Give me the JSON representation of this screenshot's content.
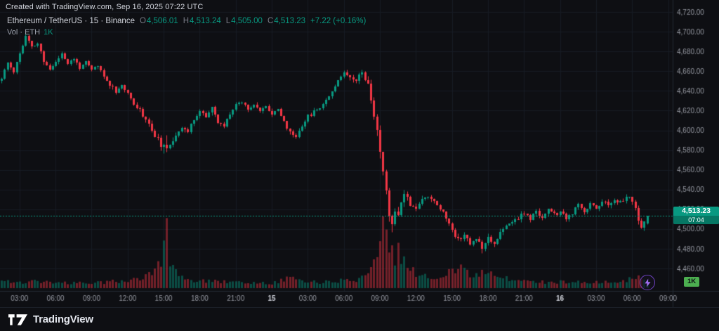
{
  "header": {
    "created_line": "Created with TradingView.com, Sep 16, 2025 07:22 UTC",
    "symbol": {
      "title": "Ethereum / TetherUS · 15 · Binance",
      "o_label": "O",
      "o": "4,506.01",
      "h_label": "H",
      "h": "4,513.24",
      "l_label": "L",
      "l": "4,505.00",
      "c_label": "C",
      "c": "4,513.23",
      "change": "+7.22 (+0.16%)"
    },
    "volume_row": {
      "label": "Vol · ETH",
      "value": "1K"
    }
  },
  "last_price": {
    "value": "4,513.23",
    "countdown": "07:04"
  },
  "volume_badge": "1K",
  "footer": {
    "brand": "TradingView"
  },
  "colors": {
    "background": "#0e0f13",
    "up": "#089981",
    "down": "#f23645",
    "vol_up": "rgba(8,153,129,0.45)",
    "vol_down": "rgba(242,54,69,0.45)",
    "grid": "#171b23",
    "axis_text": "#9598a1",
    "axis_text_major": "#d1d4dc",
    "border": "#242a33",
    "price_line": "#089981"
  },
  "chart_data": {
    "type": "candlestick",
    "title": "Ethereum / TetherUS",
    "exchange": "Binance",
    "interval": "15",
    "volume_overlay": "Vol · ETH",
    "n_candles": 216,
    "x_slots": 224,
    "ylim": [
      4438,
      4725
    ],
    "scale": {
      "price_top": 4725,
      "price_bottom": 4438
    },
    "last_candle": {
      "open": 4506.01,
      "high": 4513.24,
      "low": 4505.0,
      "close": 4513.23
    },
    "last_price": 4513.23,
    "seed": 11,
    "noise": 1.8,
    "wick": 2.2,
    "price_labels": [
      {
        "p": 4720,
        "t": "4,720.00"
      },
      {
        "p": 4700,
        "t": "4,700.00"
      },
      {
        "p": 4680,
        "t": "4,680.00"
      },
      {
        "p": 4660,
        "t": "4,660.00"
      },
      {
        "p": 4640,
        "t": "4,640.00"
      },
      {
        "p": 4620,
        "t": "4,620.00"
      },
      {
        "p": 4600,
        "t": "4,600.00"
      },
      {
        "p": 4580,
        "t": "4,580.00"
      },
      {
        "p": 4560,
        "t": "4,560.00"
      },
      {
        "p": 4540,
        "t": "4,540.00"
      },
      {
        "p": 4520,
        "t": "4,520.00"
      },
      {
        "p": 4500,
        "t": "4,500.00"
      },
      {
        "p": 4480,
        "t": "4,480.00"
      },
      {
        "p": 4460,
        "t": "4,460.00"
      }
    ],
    "time_labels": [
      {
        "i": 6,
        "t": "03:00"
      },
      {
        "i": 18,
        "t": "06:00"
      },
      {
        "i": 30,
        "t": "09:00"
      },
      {
        "i": 42,
        "t": "12:00"
      },
      {
        "i": 54,
        "t": "15:00"
      },
      {
        "i": 66,
        "t": "18:00"
      },
      {
        "i": 78,
        "t": "21:00"
      },
      {
        "i": 90,
        "t": "15",
        "major": true
      },
      {
        "i": 102,
        "t": "03:00"
      },
      {
        "i": 114,
        "t": "06:00"
      },
      {
        "i": 126,
        "t": "09:00"
      },
      {
        "i": 138,
        "t": "12:00"
      },
      {
        "i": 150,
        "t": "15:00"
      },
      {
        "i": 162,
        "t": "18:00"
      },
      {
        "i": 174,
        "t": "21:00"
      },
      {
        "i": 186,
        "t": "16",
        "major": true
      },
      {
        "i": 198,
        "t": "03:00"
      },
      {
        "i": 210,
        "t": "06:00"
      },
      {
        "i": 222,
        "t": "09:00"
      }
    ],
    "close_anchors": [
      [
        0,
        4652
      ],
      [
        2,
        4668
      ],
      [
        4,
        4660
      ],
      [
        6,
        4678
      ],
      [
        8,
        4695
      ],
      [
        10,
        4684
      ],
      [
        12,
        4688
      ],
      [
        14,
        4670
      ],
      [
        16,
        4662
      ],
      [
        18,
        4669
      ],
      [
        20,
        4678
      ],
      [
        22,
        4668
      ],
      [
        24,
        4672
      ],
      [
        26,
        4664
      ],
      [
        28,
        4668
      ],
      [
        30,
        4661
      ],
      [
        32,
        4666
      ],
      [
        34,
        4654
      ],
      [
        36,
        4647
      ],
      [
        38,
        4640
      ],
      [
        40,
        4646
      ],
      [
        42,
        4636
      ],
      [
        44,
        4628
      ],
      [
        46,
        4620
      ],
      [
        48,
        4612
      ],
      [
        50,
        4600
      ],
      [
        52,
        4590
      ],
      [
        54,
        4582
      ],
      [
        55,
        4578
      ],
      [
        56,
        4586
      ],
      [
        58,
        4596
      ],
      [
        60,
        4604
      ],
      [
        62,
        4598
      ],
      [
        64,
        4612
      ],
      [
        66,
        4620
      ],
      [
        68,
        4614
      ],
      [
        70,
        4622
      ],
      [
        72,
        4608
      ],
      [
        74,
        4604
      ],
      [
        76,
        4618
      ],
      [
        78,
        4626
      ],
      [
        80,
        4630
      ],
      [
        82,
        4622
      ],
      [
        84,
        4628
      ],
      [
        86,
        4619
      ],
      [
        88,
        4624
      ],
      [
        90,
        4618
      ],
      [
        92,
        4622
      ],
      [
        94,
        4608
      ],
      [
        96,
        4598
      ],
      [
        98,
        4594
      ],
      [
        100,
        4606
      ],
      [
        102,
        4614
      ],
      [
        104,
        4619
      ],
      [
        106,
        4624
      ],
      [
        108,
        4631
      ],
      [
        110,
        4640
      ],
      [
        112,
        4652
      ],
      [
        114,
        4658
      ],
      [
        116,
        4655
      ],
      [
        118,
        4652
      ],
      [
        120,
        4660
      ],
      [
        122,
        4646
      ],
      [
        124,
        4616
      ],
      [
        126,
        4580
      ],
      [
        127,
        4560
      ],
      [
        128,
        4536
      ],
      [
        129,
        4514
      ],
      [
        130,
        4506
      ],
      [
        131,
        4521
      ],
      [
        132,
        4512
      ],
      [
        133,
        4530
      ],
      [
        134,
        4538
      ],
      [
        136,
        4526
      ],
      [
        138,
        4521
      ],
      [
        140,
        4530
      ],
      [
        142,
        4534
      ],
      [
        144,
        4529
      ],
      [
        146,
        4521
      ],
      [
        148,
        4512
      ],
      [
        150,
        4498
      ],
      [
        152,
        4490
      ],
      [
        154,
        4495
      ],
      [
        156,
        4484
      ],
      [
        158,
        4491
      ],
      [
        160,
        4482
      ],
      [
        162,
        4492
      ],
      [
        164,
        4486
      ],
      [
        166,
        4496
      ],
      [
        168,
        4502
      ],
      [
        170,
        4508
      ],
      [
        172,
        4512
      ],
      [
        174,
        4516
      ],
      [
        176,
        4510
      ],
      [
        178,
        4518
      ],
      [
        180,
        4512
      ],
      [
        182,
        4520
      ],
      [
        184,
        4514
      ],
      [
        186,
        4518
      ],
      [
        188,
        4510
      ],
      [
        190,
        4516
      ],
      [
        192,
        4524
      ],
      [
        194,
        4518
      ],
      [
        196,
        4526
      ],
      [
        198,
        4521
      ],
      [
        200,
        4529
      ],
      [
        202,
        4523
      ],
      [
        204,
        4531
      ],
      [
        206,
        4527
      ],
      [
        208,
        4533
      ],
      [
        210,
        4529
      ],
      [
        211,
        4521
      ],
      [
        212,
        4508
      ],
      [
        213,
        4500
      ],
      [
        214,
        4507
      ],
      [
        215,
        4513.23
      ]
    ],
    "volume_anchors": [
      [
        0,
        0.1
      ],
      [
        6,
        0.08
      ],
      [
        12,
        0.1
      ],
      [
        18,
        0.08
      ],
      [
        24,
        0.07
      ],
      [
        30,
        0.07
      ],
      [
        36,
        0.09
      ],
      [
        42,
        0.1
      ],
      [
        46,
        0.14
      ],
      [
        50,
        0.22
      ],
      [
        53,
        0.35
      ],
      [
        55,
        1.0
      ],
      [
        56,
        0.4
      ],
      [
        58,
        0.22
      ],
      [
        60,
        0.14
      ],
      [
        66,
        0.1
      ],
      [
        72,
        0.09
      ],
      [
        78,
        0.08
      ],
      [
        84,
        0.07
      ],
      [
        90,
        0.07
      ],
      [
        94,
        0.12
      ],
      [
        96,
        0.16
      ],
      [
        100,
        0.1
      ],
      [
        106,
        0.08
      ],
      [
        112,
        0.1
      ],
      [
        118,
        0.12
      ],
      [
        121,
        0.18
      ],
      [
        123,
        0.3
      ],
      [
        125,
        0.55
      ],
      [
        127,
        0.92
      ],
      [
        128,
        0.85
      ],
      [
        129,
        0.65
      ],
      [
        130,
        0.75
      ],
      [
        131,
        0.45
      ],
      [
        132,
        0.55
      ],
      [
        134,
        0.38
      ],
      [
        136,
        0.28
      ],
      [
        138,
        0.2
      ],
      [
        142,
        0.14
      ],
      [
        146,
        0.12
      ],
      [
        149,
        0.25
      ],
      [
        151,
        0.18
      ],
      [
        153,
        0.3
      ],
      [
        155,
        0.22
      ],
      [
        157,
        0.16
      ],
      [
        159,
        0.2
      ],
      [
        161,
        0.26
      ],
      [
        163,
        0.18
      ],
      [
        166,
        0.14
      ],
      [
        170,
        0.12
      ],
      [
        174,
        0.1
      ],
      [
        178,
        0.09
      ],
      [
        182,
        0.08
      ],
      [
        186,
        0.09
      ],
      [
        190,
        0.08
      ],
      [
        194,
        0.09
      ],
      [
        198,
        0.08
      ],
      [
        202,
        0.09
      ],
      [
        206,
        0.1
      ],
      [
        209,
        0.12
      ],
      [
        211,
        0.14
      ],
      [
        212,
        0.18
      ],
      [
        213,
        0.15
      ],
      [
        214,
        0.11
      ],
      [
        215,
        0.09
      ]
    ]
  }
}
